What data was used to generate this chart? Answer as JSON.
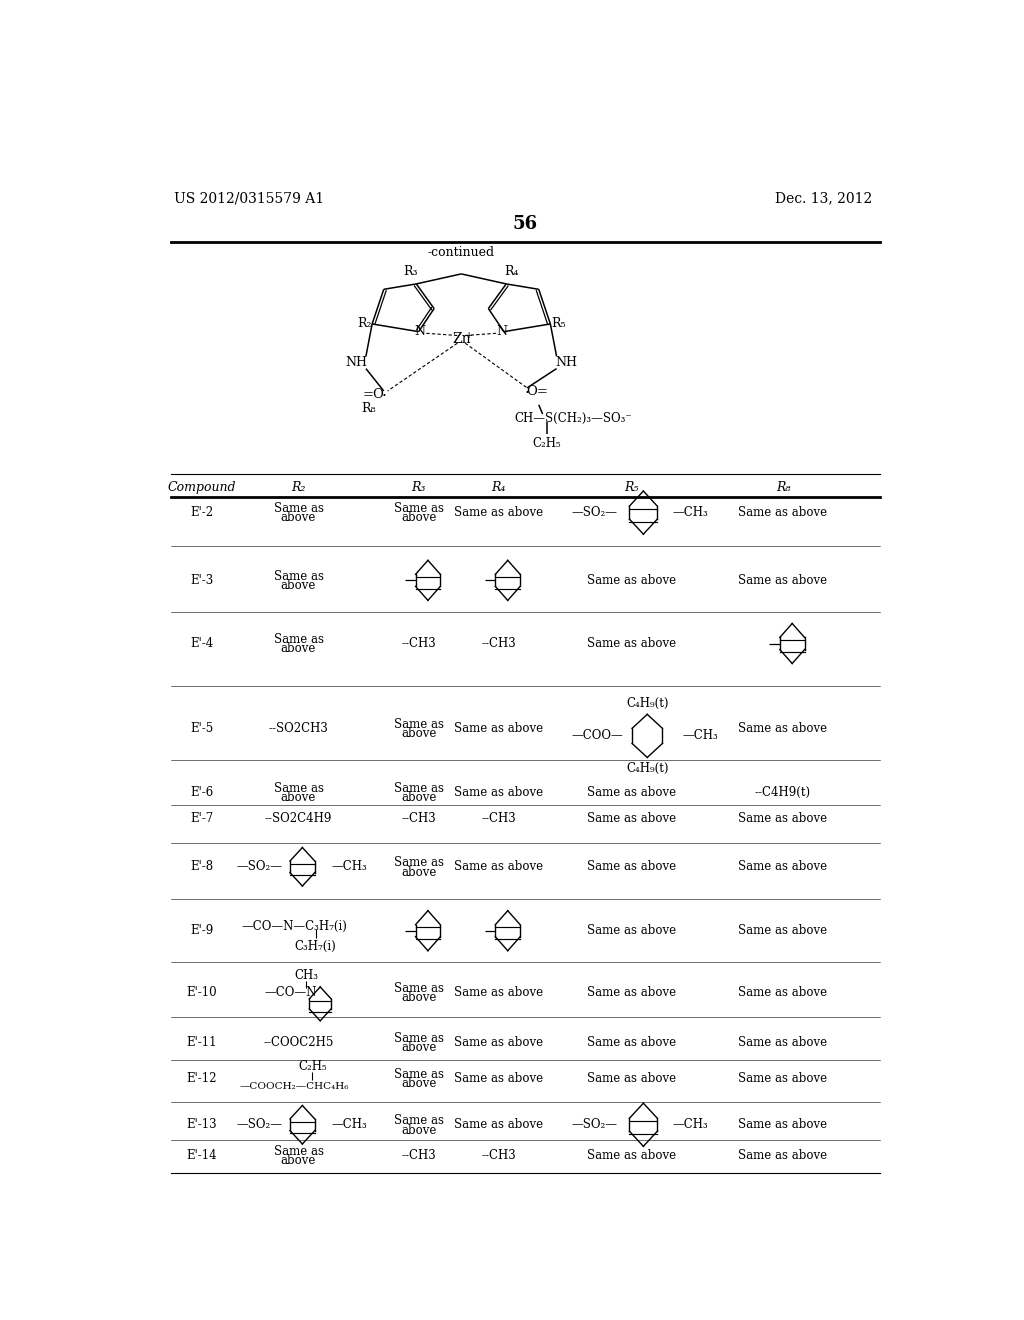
{
  "page_number": "56",
  "patent_number": "US 2012/0315579 A1",
  "patent_date": "Dec. 13, 2012",
  "continued_label": "-continued",
  "background_color": "#ffffff",
  "text_color": "#000000"
}
